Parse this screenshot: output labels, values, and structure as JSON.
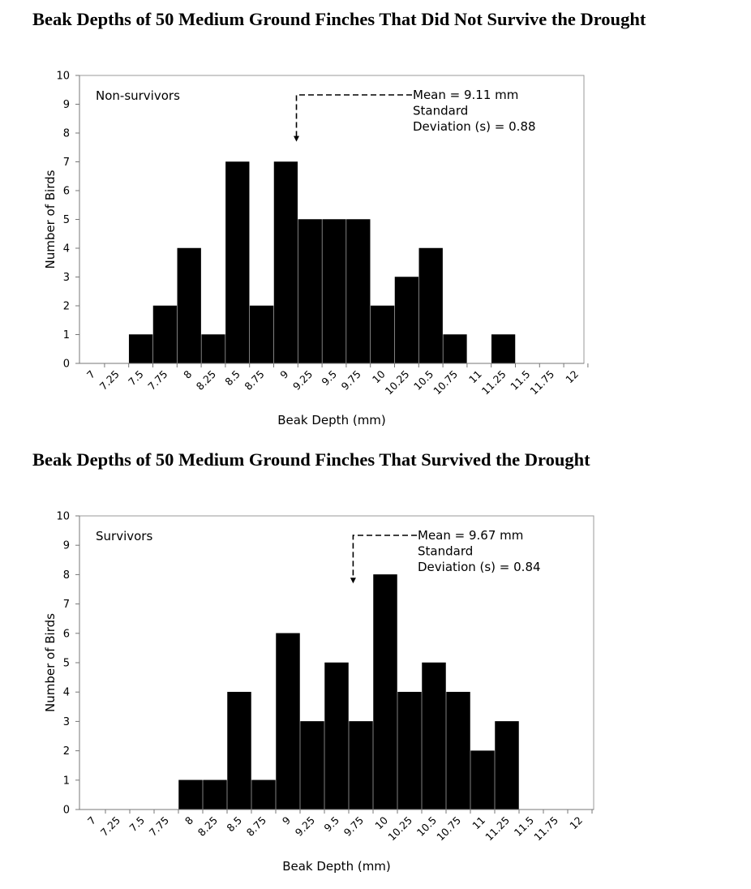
{
  "chart_data": [
    {
      "type": "bar",
      "title": "Beak Depths of 50 Medium Ground Finches That Did Not Survive the Drought",
      "panel_label": "Non-survivors",
      "xlabel": "Beak Depth (mm)",
      "ylabel": "Number of Birds",
      "ylim": [
        0,
        10
      ],
      "yticks": [
        "0",
        "1",
        "2",
        "3",
        "4",
        "5",
        "6",
        "7",
        "8",
        "9",
        "10"
      ],
      "categories": [
        "7",
        "7.25",
        "7.5",
        "7.75",
        "8",
        "8.25",
        "8.5",
        "8.75",
        "9",
        "9.25",
        "9.5",
        "9.75",
        "10",
        "10.25",
        "10.5",
        "10.75",
        "11",
        "11.25",
        "11.5",
        "11.75",
        "12"
      ],
      "bars": [
        {
          "x": 7.5,
          "value": 1
        },
        {
          "x": 7.75,
          "value": 2
        },
        {
          "x": 8,
          "value": 4
        },
        {
          "x": 8.25,
          "value": 1
        },
        {
          "x": 8.5,
          "value": 7
        },
        {
          "x": 8.75,
          "value": 2
        },
        {
          "x": 9,
          "value": 7
        },
        {
          "x": 9.25,
          "value": 5
        },
        {
          "x": 9.5,
          "value": 5
        },
        {
          "x": 9.75,
          "value": 5
        },
        {
          "x": 10,
          "value": 2
        },
        {
          "x": 10.25,
          "value": 3
        },
        {
          "x": 10.5,
          "value": 4
        },
        {
          "x": 10.75,
          "value": 1
        },
        {
          "x": 11.25,
          "value": 1
        }
      ],
      "annotation": {
        "lines": [
          "Mean = 9.11 mm",
          "Standard",
          "Deviation (s) = 0.88"
        ],
        "mean": 9.11
      },
      "grid": false,
      "bar_color": "#000000"
    },
    {
      "type": "bar",
      "title": "Beak Depths of 50 Medium Ground Finches That Survived the Drought",
      "panel_label": "Survivors",
      "xlabel": "Beak Depth (mm)",
      "ylabel": "Number of Birds",
      "ylim": [
        0,
        10
      ],
      "yticks": [
        "0",
        "1",
        "2",
        "3",
        "4",
        "5",
        "6",
        "7",
        "8",
        "9",
        "10"
      ],
      "categories": [
        "7",
        "7.25",
        "7.5",
        "7.75",
        "8",
        "8.25",
        "8.5",
        "8.75",
        "9",
        "9.25",
        "9.5",
        "9.75",
        "10",
        "10.25",
        "10.5",
        "10.75",
        "11",
        "11.25",
        "11.5",
        "11.75",
        "12"
      ],
      "bars": [
        {
          "x": 8,
          "value": 1
        },
        {
          "x": 8.25,
          "value": 1
        },
        {
          "x": 8.5,
          "value": 4
        },
        {
          "x": 8.75,
          "value": 1
        },
        {
          "x": 9,
          "value": 6
        },
        {
          "x": 9.25,
          "value": 3
        },
        {
          "x": 9.5,
          "value": 5
        },
        {
          "x": 9.75,
          "value": 3
        },
        {
          "x": 10,
          "value": 8
        },
        {
          "x": 10.25,
          "value": 4
        },
        {
          "x": 10.5,
          "value": 5
        },
        {
          "x": 10.75,
          "value": 4
        },
        {
          "x": 11,
          "value": 2
        },
        {
          "x": 11.25,
          "value": 3
        }
      ],
      "annotation": {
        "lines": [
          "Mean = 9.67 mm",
          "Standard",
          "Deviation (s) = 0.84"
        ],
        "mean": 9.67
      },
      "grid": false,
      "bar_color": "#000000"
    }
  ]
}
